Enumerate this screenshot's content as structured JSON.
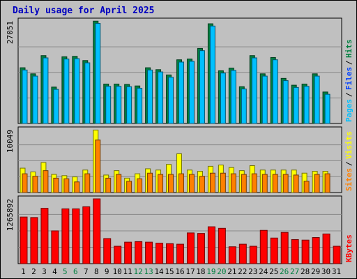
{
  "title": "Daily usage for April 2025",
  "colors": {
    "hits": "#008040",
    "files": "#0040ff",
    "pages": "#00c0ff",
    "visits": "#ffff00",
    "sites": "#ff8000",
    "kbytes": "#ff0000",
    "panel_bg": "#c0c0c0",
    "weekend_label": "#008040",
    "weekday_label": "#000000"
  },
  "chart_data": [
    {
      "type": "bar",
      "name": "hits-files-pages",
      "ymax_label": "27051",
      "ylim": [
        0,
        27051
      ],
      "grid": true,
      "legend_right": [
        {
          "label": "Pages",
          "color": "#00c0ff"
        },
        {
          "label": "Files",
          "color": "#0040ff"
        },
        {
          "label": "Hits",
          "color": "#008040"
        }
      ],
      "categories": [
        "1",
        "2",
        "3",
        "4",
        "5",
        "6",
        "7",
        "8",
        "9",
        "10",
        "11",
        "12",
        "13",
        "14",
        "15",
        "16",
        "17",
        "18",
        "19",
        "20",
        "21",
        "22",
        "23",
        "24",
        "25",
        "26",
        "27",
        "28",
        "29",
        "30",
        "31"
      ],
      "series": [
        {
          "name": "Hits",
          "values": [
            14700,
            13100,
            17900,
            9600,
            17600,
            17700,
            16600,
            27000,
            10400,
            10400,
            10300,
            9900,
            14700,
            14200,
            12800,
            16800,
            17000,
            19800,
            26300,
            13900,
            14600,
            9700,
            17900,
            13100,
            17400,
            11900,
            10100,
            10400,
            13100,
            8300,
            0
          ]
        },
        {
          "name": "Pages",
          "values": [
            14100,
            12500,
            17300,
            9000,
            17000,
            17100,
            16000,
            26400,
            9800,
            9800,
            9700,
            9300,
            14100,
            13600,
            12200,
            16200,
            16400,
            19200,
            25700,
            13300,
            14000,
            9100,
            17300,
            12500,
            16800,
            11300,
            9500,
            9800,
            12500,
            7700,
            0
          ]
        }
      ]
    },
    {
      "type": "bar",
      "name": "visits-sites",
      "ymax_label": "10049",
      "ylim": [
        0,
        10049
      ],
      "grid": true,
      "legend_right": [
        {
          "label": "Sites",
          "color": "#ff8000"
        },
        {
          "label": "Visits",
          "color": "#ffff00"
        }
      ],
      "categories": [
        "1",
        "2",
        "3",
        "4",
        "5",
        "6",
        "7",
        "8",
        "9",
        "10",
        "11",
        "12",
        "13",
        "14",
        "15",
        "16",
        "17",
        "18",
        "19",
        "20",
        "21",
        "22",
        "23",
        "24",
        "25",
        "26",
        "27",
        "28",
        "29",
        "30",
        "31"
      ],
      "series": [
        {
          "name": "Visits",
          "values": [
            3900,
            3300,
            4800,
            2900,
            2700,
            2500,
            3600,
            10000,
            2800,
            3500,
            2300,
            3000,
            3800,
            3600,
            4500,
            6200,
            3600,
            3400,
            4200,
            4400,
            4000,
            3500,
            4300,
            3600,
            3600,
            3600,
            3600,
            3100,
            3400,
            3400,
            0
          ]
        },
        {
          "name": "Sites",
          "values": [
            3000,
            2600,
            3500,
            2300,
            2200,
            1700,
            3000,
            8400,
            2300,
            2900,
            1800,
            2200,
            3100,
            2900,
            2900,
            3000,
            2900,
            2600,
            3100,
            3100,
            3000,
            2900,
            3000,
            2900,
            2900,
            2900,
            2800,
            1800,
            2900,
            3000,
            0
          ]
        }
      ]
    },
    {
      "type": "bar",
      "name": "kbytes",
      "ymax_label": "1265892",
      "ylim": [
        0,
        1265892
      ],
      "grid": true,
      "legend_right": [
        {
          "label": "KBytes",
          "color": "#ff0000"
        }
      ],
      "categories": [
        "1",
        "2",
        "3",
        "4",
        "5",
        "6",
        "7",
        "8",
        "9",
        "10",
        "11",
        "12",
        "13",
        "14",
        "15",
        "16",
        "17",
        "18",
        "19",
        "20",
        "21",
        "22",
        "23",
        "24",
        "25",
        "26",
        "27",
        "28",
        "29",
        "30",
        "31"
      ],
      "series": [
        {
          "name": "KBytes",
          "values": [
            910000,
            900000,
            1080000,
            640000,
            1070000,
            1070000,
            1110000,
            1265000,
            490000,
            340000,
            420000,
            430000,
            420000,
            400000,
            390000,
            380000,
            600000,
            590000,
            720000,
            690000,
            330000,
            380000,
            340000,
            650000,
            500000,
            610000,
            470000,
            460000,
            510000,
            580000,
            340000
          ]
        }
      ]
    }
  ],
  "x_labels": [
    "1",
    "2",
    "3",
    "4",
    "5",
    "6",
    "7",
    "8",
    "9",
    "10",
    "11",
    "12",
    "13",
    "14",
    "15",
    "16",
    "17",
    "18",
    "19",
    "20",
    "21",
    "22",
    "23",
    "24",
    "25",
    "26",
    "27",
    "28",
    "29",
    "30",
    "31"
  ],
  "weekend_days": [
    5,
    6,
    12,
    13,
    19,
    20,
    26,
    27
  ]
}
